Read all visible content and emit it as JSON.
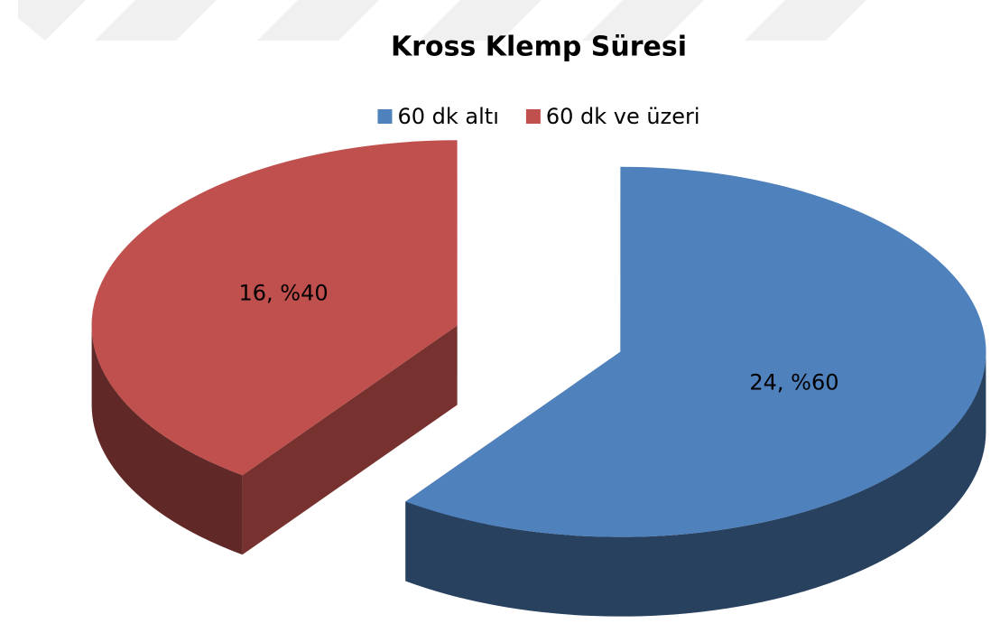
{
  "chart_data": {
    "type": "pie",
    "title": "Kross Klemp Süresi",
    "categories": [
      "60 dk altı",
      "60 dk ve üzeri"
    ],
    "values": [
      24,
      16
    ],
    "value_labels": [
      "24, %60",
      "16, %40"
    ],
    "colors": [
      "#4f81bd",
      "#c0504d"
    ],
    "legend": "top"
  }
}
